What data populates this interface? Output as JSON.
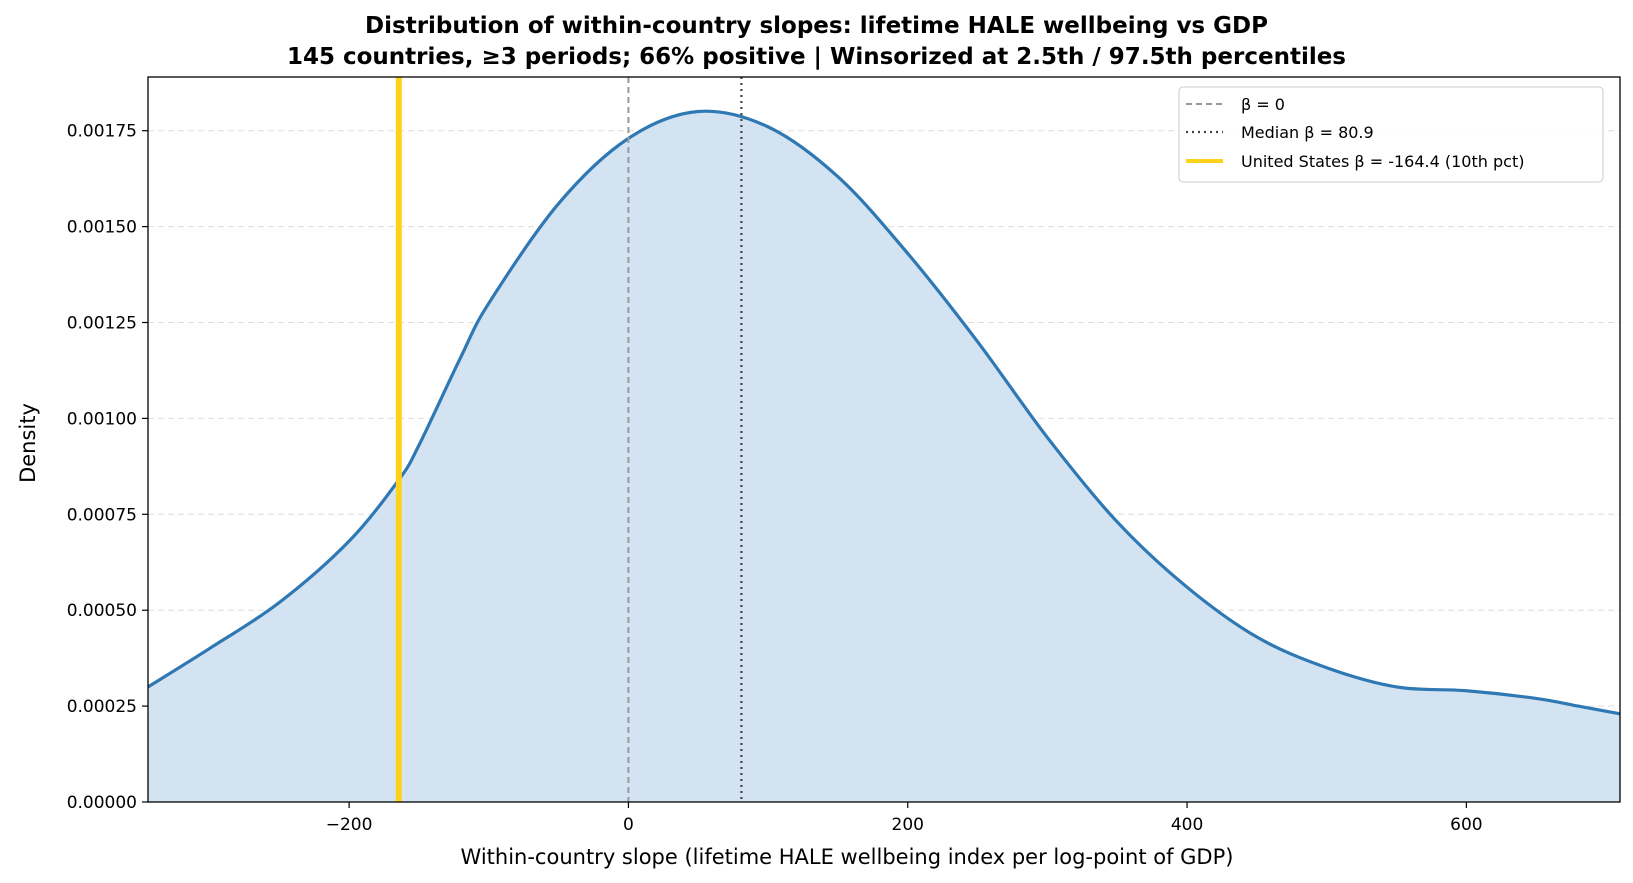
{
  "chart_data": {
    "type": "area",
    "title": "Distribution of within-country slopes: lifetime HALE wellbeing vs GDP",
    "subtitle": "145 countries, ≥3 periods; 66% positive  |  Winsorized at 2.5th / 97.5th percentiles",
    "xlabel": "Within-country slope (lifetime HALE wellbeing index per log-point of GDP)",
    "ylabel": "Density",
    "xlim": [
      -344,
      710
    ],
    "ylim": [
      0,
      0.00189
    ],
    "x_ticks": [
      -200,
      0,
      200,
      400,
      600
    ],
    "x_tick_labels": [
      "−200",
      "0",
      "200",
      "400",
      "600"
    ],
    "y_ticks": [
      0,
      0.00025,
      0.0005,
      0.00075,
      0.001,
      0.00125,
      0.0015,
      0.00175
    ],
    "y_tick_labels": [
      "0.00000",
      "0.00025",
      "0.00050",
      "0.00075",
      "0.00100",
      "0.00125",
      "0.00150",
      "0.00175"
    ],
    "grid": "horizontal dashed",
    "legend_position": "top-right",
    "series": [
      {
        "name": "",
        "x": [
          -344,
          -300,
          -250,
          -200,
          -164.4,
          -150,
          -120,
          -100,
          -50,
          0,
          50,
          100,
          150,
          200,
          250,
          300,
          350,
          400,
          450,
          500,
          550,
          600,
          650,
          680,
          710
        ],
        "y": [
          0.0003,
          0.0004,
          0.00052,
          0.00068,
          0.00084,
          0.00093,
          0.00116,
          0.0013,
          0.00156,
          0.00173,
          0.0018,
          0.00176,
          0.00163,
          0.00143,
          0.0012,
          0.00095,
          0.00073,
          0.00056,
          0.00043,
          0.00035,
          0.0003,
          0.00029,
          0.00027,
          0.00025,
          0.00023
        ]
      }
    ],
    "reference_lines": [
      {
        "label": "β = 0",
        "x": 0,
        "style": "dashed",
        "color": "#999999"
      },
      {
        "label": "Median  β = 80.9",
        "x": 80.9,
        "style": "dotted",
        "color": "#444444"
      },
      {
        "label": "United States  β = -164.4  (10th pct)",
        "x": -164.4,
        "style": "solid",
        "color": "#FFD21A"
      }
    ],
    "colors": {
      "curve": "#2e78b4",
      "fill": "#d4e3f1",
      "grid": "#dddddd"
    }
  }
}
